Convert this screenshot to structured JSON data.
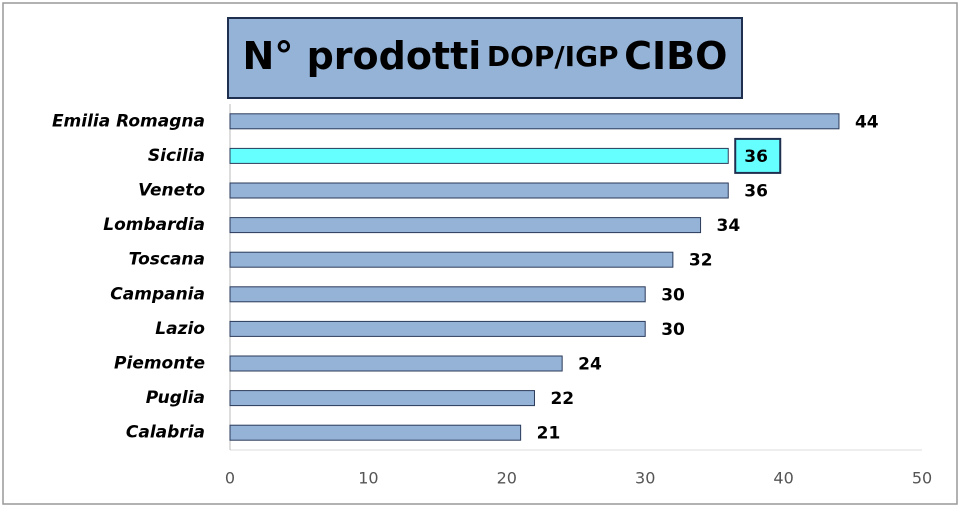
{
  "chart_data": {
    "type": "barh",
    "title": [
      "N° prodotti",
      "DOP/IGP",
      "CIBO"
    ],
    "categories": [
      "Emilia Romagna",
      "Sicilia",
      "Veneto",
      "Lombardia",
      "Toscana",
      "Campania",
      "Lazio",
      "Piemonte",
      "Puglia",
      "Calabria"
    ],
    "values": [
      44,
      36,
      36,
      34,
      32,
      30,
      30,
      24,
      22,
      21
    ],
    "color": "#95b3d7",
    "colors": [
      "#95b3d7",
      "#66ffff",
      "#95b3d7",
      "#95b3d7",
      "#95b3d7",
      "#95b3d7",
      "#95b3d7",
      "#95b3d7",
      "#95b3d7",
      "#95b3d7"
    ],
    "xlim": [
      0,
      50
    ],
    "xticks": [
      0,
      10,
      20,
      30,
      40,
      50
    ],
    "grid": false
  }
}
